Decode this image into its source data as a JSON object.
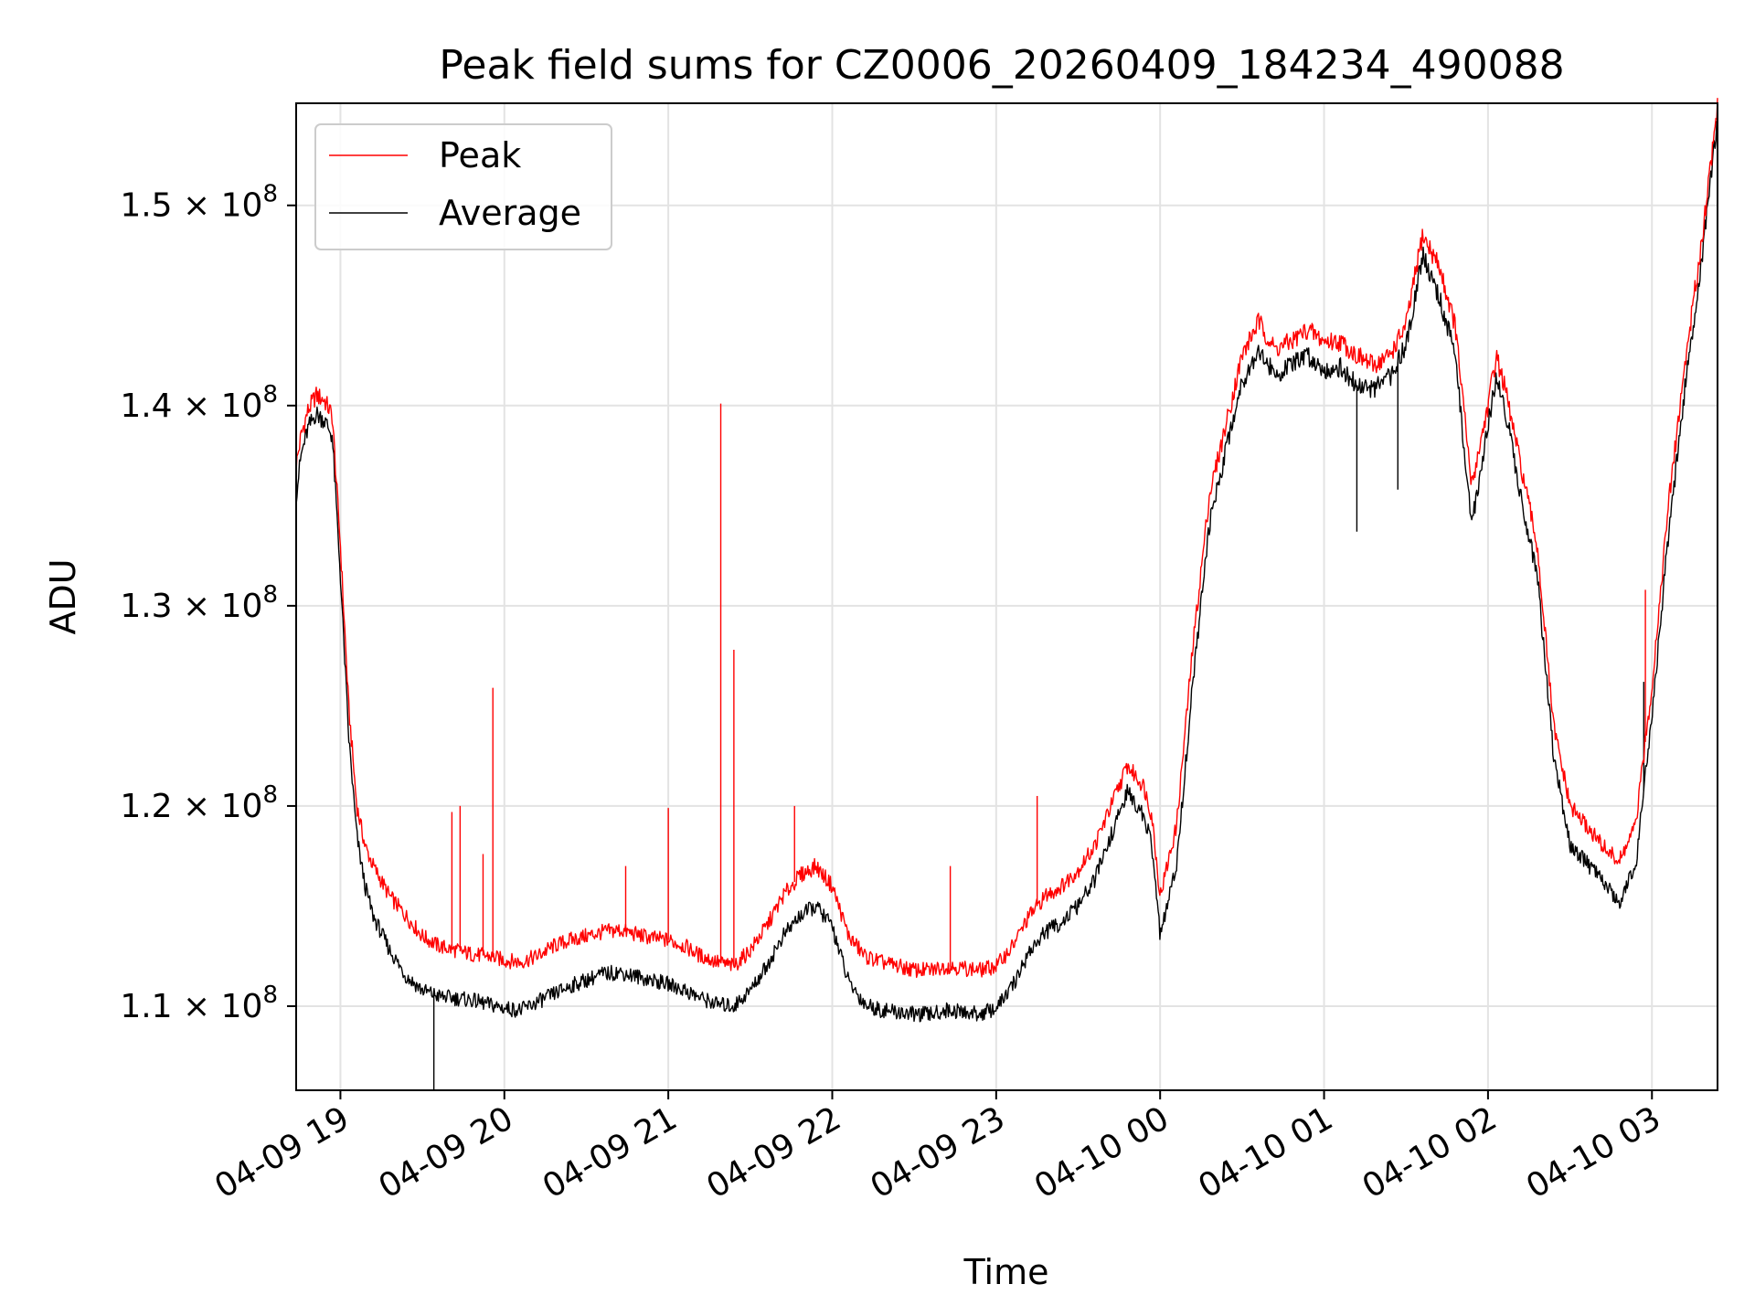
{
  "chart_data": {
    "type": "line",
    "title": "Peak field sums for CZ0006_20260409_184234_490088",
    "xlabel": "Time",
    "ylabel": "ADU",
    "x_unit": "hours since 04-09 18:00",
    "xlim": [
      0.73,
      9.4
    ],
    "ylim": [
      105800000.0,
      155100000.0
    ],
    "grid": true,
    "legend_position": "upper-left",
    "x_ticks": [
      {
        "value": 1,
        "label": "04-09 19"
      },
      {
        "value": 2,
        "label": "04-09 20"
      },
      {
        "value": 3,
        "label": "04-09 21"
      },
      {
        "value": 4,
        "label": "04-09 22"
      },
      {
        "value": 5,
        "label": "04-09 23"
      },
      {
        "value": 6,
        "label": "04-10 00"
      },
      {
        "value": 7,
        "label": "04-10 01"
      },
      {
        "value": 8,
        "label": "04-10 02"
      },
      {
        "value": 9,
        "label": "04-10 03"
      }
    ],
    "y_ticks": [
      {
        "value": 110000000.0,
        "mantissa": "1.1",
        "exp": "8"
      },
      {
        "value": 120000000.0,
        "mantissa": "1.2",
        "exp": "8"
      },
      {
        "value": 130000000.0,
        "mantissa": "1.3",
        "exp": "8"
      },
      {
        "value": 140000000.0,
        "mantissa": "1.4",
        "exp": "8"
      },
      {
        "value": 150000000.0,
        "mantissa": "1.5",
        "exp": "8"
      }
    ],
    "series": [
      {
        "name": "Peak",
        "color": "#ff0000",
        "x": [
          0.73,
          0.76,
          0.8,
          0.85,
          0.9,
          0.95,
          1.0,
          1.05,
          1.1,
          1.15,
          1.2,
          1.3,
          1.4,
          1.5,
          1.6,
          1.7,
          1.8,
          1.9,
          2.0,
          2.1,
          2.2,
          2.3,
          2.4,
          2.5,
          2.6,
          2.7,
          2.8,
          2.9,
          3.0,
          3.1,
          3.2,
          3.3,
          3.4,
          3.5,
          3.6,
          3.7,
          3.8,
          3.9,
          4.0,
          4.1,
          4.2,
          4.3,
          4.4,
          4.5,
          4.6,
          4.7,
          4.8,
          4.9,
          5.0,
          5.1,
          5.2,
          5.3,
          5.4,
          5.5,
          5.6,
          5.7,
          5.8,
          5.9,
          5.95,
          6.0,
          6.1,
          6.2,
          6.3,
          6.4,
          6.5,
          6.6,
          6.7,
          6.8,
          6.9,
          7.0,
          7.1,
          7.2,
          7.3,
          7.4,
          7.5,
          7.6,
          7.7,
          7.8,
          7.9,
          8.0,
          8.05,
          8.1,
          8.15,
          8.2,
          8.3,
          8.4,
          8.5,
          8.6,
          8.7,
          8.8,
          8.9,
          9.0,
          9.1,
          9.2,
          9.3,
          9.4
        ],
        "values": [
          137000000.0,
          138500000.0,
          139700000.0,
          140500000.0,
          140300000.0,
          139500000.0,
          133000000.0,
          125000000.0,
          120000000.0,
          118000000.0,
          117000000.0,
          115500000.0,
          114500000.0,
          113500000.0,
          113000000.0,
          112800000.0,
          112600000.0,
          112500000.0,
          112300000.0,
          112200000.0,
          112500000.0,
          113000000.0,
          113300000.0,
          113500000.0,
          113700000.0,
          113800000.0,
          113600000.0,
          113400000.0,
          113300000.0,
          113000000.0,
          112500000.0,
          112200000.0,
          112000000.0,
          112800000.0,
          114000000.0,
          115500000.0,
          116500000.0,
          117000000.0,
          116000000.0,
          113500000.0,
          112500000.0,
          112200000.0,
          112000000.0,
          111800000.0,
          111800000.0,
          112000000.0,
          111900000.0,
          111800000.0,
          112000000.0,
          113000000.0,
          114500000.0,
          115500000.0,
          116000000.0,
          116800000.0,
          118000000.0,
          120000000.0,
          122000000.0,
          121000000.0,
          119500000.0,
          115500000.0,
          119000000.0,
          128000000.0,
          135500000.0,
          139000000.0,
          142500000.0,
          144200000.0,
          142800000.0,
          143200000.0,
          143800000.0,
          143200000.0,
          143200000.0,
          142500000.0,
          142000000.0,
          142500000.0,
          144000000.0,
          148500000.0,
          147000000.0,
          144000000.0,
          136000000.0,
          140000000.0,
          142500000.0,
          141000000.0,
          139000000.0,
          137000000.0,
          133000000.0,
          124000000.0,
          120000000.0,
          119000000.0,
          118000000.0,
          117200000.0,
          119000000.0,
          126000000.0,
          135000000.0,
          142000000.0,
          148000000.0,
          155000000.0
        ]
      },
      {
        "name": "Average",
        "color": "#000000",
        "x": [
          0.73,
          0.76,
          0.8,
          0.85,
          0.9,
          0.95,
          1.0,
          1.05,
          1.1,
          1.15,
          1.2,
          1.3,
          1.4,
          1.5,
          1.6,
          1.7,
          1.8,
          1.9,
          2.0,
          2.1,
          2.2,
          2.3,
          2.4,
          2.5,
          2.6,
          2.7,
          2.8,
          2.9,
          3.0,
          3.1,
          3.2,
          3.3,
          3.4,
          3.5,
          3.6,
          3.7,
          3.8,
          3.9,
          4.0,
          4.1,
          4.2,
          4.3,
          4.4,
          4.5,
          4.6,
          4.7,
          4.8,
          4.9,
          5.0,
          5.1,
          5.2,
          5.3,
          5.4,
          5.5,
          5.6,
          5.7,
          5.8,
          5.9,
          5.95,
          6.0,
          6.1,
          6.2,
          6.3,
          6.4,
          6.5,
          6.6,
          6.7,
          6.8,
          6.9,
          7.0,
          7.1,
          7.2,
          7.3,
          7.4,
          7.5,
          7.6,
          7.7,
          7.8,
          7.9,
          8.0,
          8.05,
          8.1,
          8.15,
          8.2,
          8.3,
          8.4,
          8.5,
          8.6,
          8.7,
          8.8,
          8.9,
          9.0,
          9.1,
          9.2,
          9.3,
          9.4
        ],
        "values": [
          135500000.0,
          137500000.0,
          138800000.0,
          139600000.0,
          139300000.0,
          138500000.0,
          131500000.0,
          123500000.0,
          118500000.0,
          116000000.0,
          114500000.0,
          112800000.0,
          111500000.0,
          110800000.0,
          110500000.0,
          110400000.0,
          110300000.0,
          110100000.0,
          109900000.0,
          109800000.0,
          110200000.0,
          110600000.0,
          111000000.0,
          111300000.0,
          111600000.0,
          111700000.0,
          111500000.0,
          111300000.0,
          111100000.0,
          110800000.0,
          110400000.0,
          110100000.0,
          110000000.0,
          110800000.0,
          112000000.0,
          113500000.0,
          114500000.0,
          115000000.0,
          114000000.0,
          111200000.0,
          110100000.0,
          109800000.0,
          109700000.0,
          109600000.0,
          109600000.0,
          109800000.0,
          109700000.0,
          109600000.0,
          109900000.0,
          111000000.0,
          112700000.0,
          113700000.0,
          114200000.0,
          115000000.0,
          116300000.0,
          118500000.0,
          120700000.0,
          119500000.0,
          118000000.0,
          113500000.0,
          117000000.0,
          126200000.0,
          134000000.0,
          137800000.0,
          141200000.0,
          142800000.0,
          141500000.0,
          142000000.0,
          142500000.0,
          141800000.0,
          141900000.0,
          141000000.0,
          140800000.0,
          141400000.0,
          143000000.0,
          147500000.0,
          145500000.0,
          142500000.0,
          134000000.0,
          139000000.0,
          141500000.0,
          140000000.0,
          137800000.0,
          135500000.0,
          131500000.0,
          122500000.0,
          118000000.0,
          117200000.0,
          116200000.0,
          115200000.0,
          117000000.0,
          124500000.0,
          133500000.0,
          140800000.0,
          147000000.0,
          154500000.0
        ]
      }
    ],
    "spikes": [
      {
        "series": "Peak",
        "x": 1.68,
        "value": 119700000.0
      },
      {
        "series": "Peak",
        "x": 1.73,
        "value": 120000000.0
      },
      {
        "series": "Peak",
        "x": 1.87,
        "value": 117600000.0
      },
      {
        "series": "Peak",
        "x": 1.93,
        "value": 125900000.0
      },
      {
        "series": "Peak",
        "x": 2.74,
        "value": 117000000.0
      },
      {
        "series": "Peak",
        "x": 3.0,
        "value": 119900000.0
      },
      {
        "series": "Peak",
        "x": 3.32,
        "value": 140100000.0
      },
      {
        "series": "Peak",
        "x": 3.4,
        "value": 127800000.0
      },
      {
        "series": "Peak",
        "x": 3.77,
        "value": 120000000.0
      },
      {
        "series": "Peak",
        "x": 4.72,
        "value": 117000000.0
      },
      {
        "series": "Peak",
        "x": 5.25,
        "value": 120500000.0
      },
      {
        "series": "Peak",
        "x": 8.96,
        "value": 130800000.0
      },
      {
        "series": "Average",
        "x": 1.57,
        "value": 105800000.0
      },
      {
        "series": "Average",
        "x": 7.2,
        "value": 133700000.0
      },
      {
        "series": "Average",
        "x": 7.45,
        "value": 135800000.0
      },
      {
        "series": "Average",
        "x": 8.95,
        "value": 126200000.0
      }
    ]
  }
}
